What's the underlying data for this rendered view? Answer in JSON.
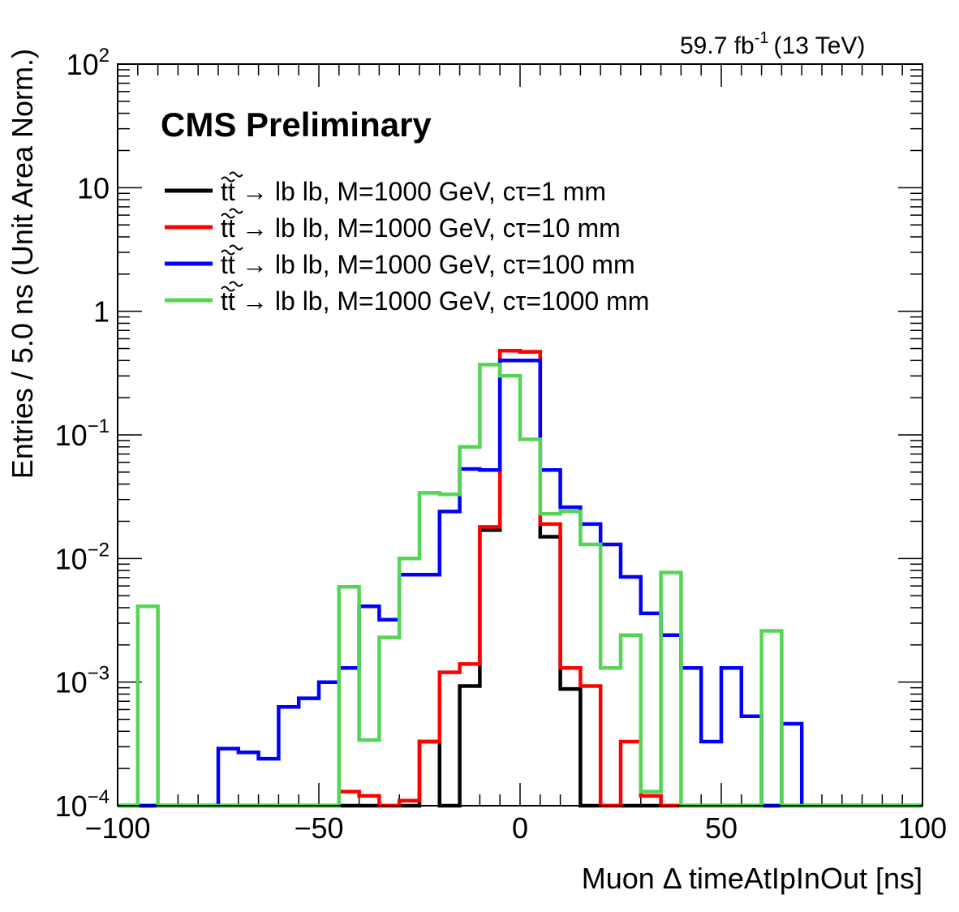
{
  "chart_data": {
    "type": "histogram",
    "lumi_label": "59.7 fb",
    "lumi_exponent": "-1",
    "energy_label": "(13 TeV)",
    "experiment_label": "CMS Preliminary",
    "xlabel": "Muon Δ timeAtIpInOut [ns]",
    "ylabel": "Entries / 5.0 ns (Unit Area Norm.)",
    "xlim": [
      -100,
      100
    ],
    "ylim": [
      0.0001,
      100
    ],
    "yscale": "log",
    "bin_width": 5,
    "x_tick_labels": [
      "−100",
      "−50",
      "0",
      "50",
      "100"
    ],
    "y_tick_labels": [
      {
        "base": "10",
        "exp": "−4"
      },
      {
        "base": "10",
        "exp": "−3"
      },
      {
        "base": "10",
        "exp": "−2"
      },
      {
        "base": "10",
        "exp": "−1"
      },
      {
        "base": "1",
        "exp": ""
      },
      {
        "base": "10",
        "exp": ""
      },
      {
        "base": "10",
        "exp": "2"
      }
    ],
    "legend_position": "top-left",
    "bin_edges": [
      -100,
      -95,
      -90,
      -85,
      -80,
      -75,
      -70,
      -65,
      -60,
      -55,
      -50,
      -45,
      -40,
      -35,
      -30,
      -25,
      -20,
      -15,
      -10,
      -5,
      0,
      5,
      10,
      15,
      20,
      25,
      30,
      35,
      40,
      45,
      50,
      55,
      60,
      65,
      70,
      75,
      80,
      85,
      90,
      95,
      100
    ],
    "series": [
      {
        "name": "→ lb lb, M=1000 GeV, cτ=1 mm",
        "color": "#000000",
        "values": [
          0,
          0,
          0,
          0,
          0,
          0,
          0,
          0,
          0,
          0,
          0,
          0,
          0,
          0,
          0,
          0.00033,
          0,
          0.00093,
          0.017,
          0.48,
          0.47,
          0.015,
          0.00088,
          0,
          0,
          0,
          0,
          0,
          0,
          0,
          0,
          0,
          0,
          0,
          0,
          0,
          0,
          0,
          0,
          0
        ]
      },
      {
        "name": "→ lb lb, M=1000 GeV, cτ=10 mm",
        "color": "#ff0000",
        "values": [
          0,
          0,
          0,
          0,
          0,
          0,
          0,
          0,
          0,
          0,
          0,
          0.00013,
          0.00012,
          0,
          0.00011,
          0.00033,
          0.0012,
          0.0014,
          0.018,
          0.48,
          0.47,
          0.019,
          0.0013,
          0.00093,
          0,
          0.00033,
          0.00012,
          0,
          0,
          0,
          0,
          0,
          0,
          0,
          0,
          0,
          0,
          0,
          0,
          0
        ]
      },
      {
        "name": "→ lb lb, M=1000 GeV, cτ=100 mm",
        "color": "#0000ff",
        "values": [
          0,
          0,
          0,
          0,
          0,
          0.00029,
          0.00027,
          0.00024,
          0.00063,
          0.00074,
          0.001,
          0.0013,
          0.0041,
          0.0032,
          0.0074,
          0.0074,
          0.024,
          0.053,
          0.052,
          0.4,
          0.4,
          0.052,
          0.026,
          0.019,
          0.013,
          0.0071,
          0.0036,
          0.0024,
          0.0013,
          0.00033,
          0.0013,
          0.00053,
          0,
          0.00046,
          0,
          0,
          0,
          0,
          0,
          0
        ]
      },
      {
        "name": "→ lb lb, M=1000 GeV, cτ=1000 mm",
        "color": "#55d555",
        "values": [
          0,
          0.0041,
          0,
          0,
          0,
          0,
          0,
          0,
          0,
          0,
          0,
          0.0059,
          0.00034,
          0.0023,
          0.01,
          0.034,
          0.033,
          0.08,
          0.37,
          0.3,
          0.092,
          0.023,
          0.024,
          0.013,
          0.0013,
          0.0024,
          0.00013,
          0.0077,
          0,
          0,
          0,
          0,
          0.0026,
          0,
          0,
          0,
          0,
          0,
          0,
          0
        ]
      }
    ]
  }
}
